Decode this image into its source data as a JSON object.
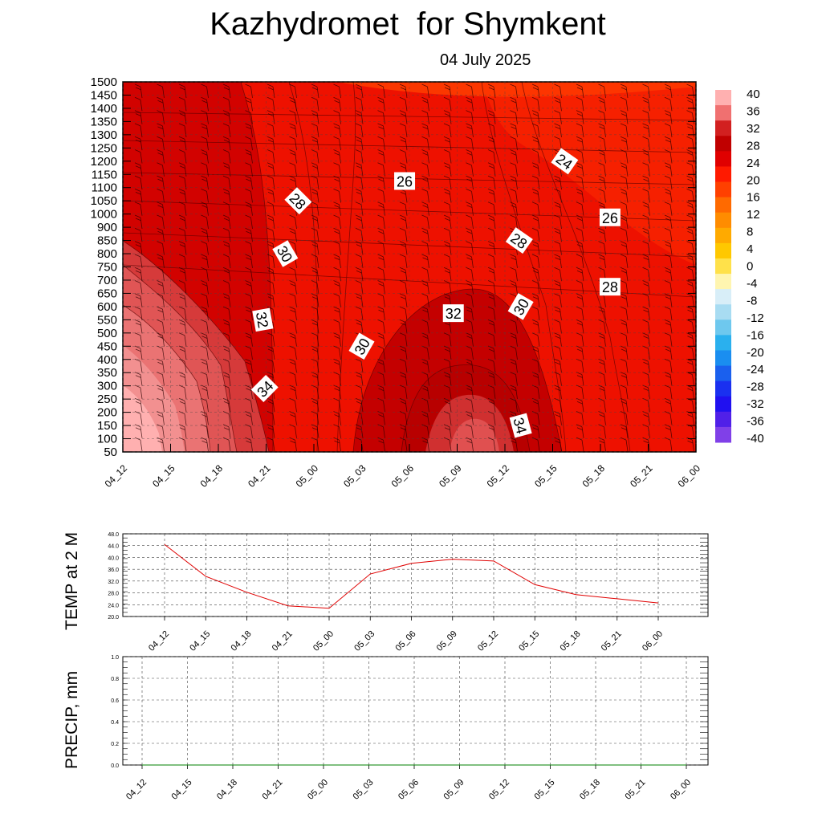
{
  "title": "Kazhydromet  for Shymkent",
  "date_label": "04 July 2025",
  "chart_data": [
    {
      "type": "heatmap",
      "x_ticks": [
        "04_12",
        "04_15",
        "04_18",
        "04_21",
        "05_00",
        "05_03",
        "05_06",
        "05_09",
        "05_12",
        "05_15",
        "05_18",
        "05_21",
        "06_00"
      ],
      "y_ticks": [
        "1500",
        "1450",
        "1400",
        "1350",
        "1300",
        "1250",
        "1200",
        "1150",
        "1100",
        "1050",
        "1000",
        "900",
        "850",
        "800",
        "750",
        "700",
        "650",
        "600",
        "550",
        "500",
        "450",
        "400",
        "350",
        "300",
        "250",
        "200",
        "150",
        "100",
        "50"
      ],
      "colorbar_labels": [
        "40",
        "36",
        "32",
        "28",
        "24",
        "20",
        "16",
        "12",
        "8",
        "4",
        "0",
        "-4",
        "-8",
        "-12",
        "-16",
        "-20",
        "-24",
        "-28",
        "-32",
        "-36",
        "-40"
      ],
      "contour_labels": [
        {
          "text": "24",
          "t": 9.25,
          "level": 1200,
          "angle": 35
        },
        {
          "text": "26",
          "t": 5.9,
          "level": 1125,
          "angle": 0
        },
        {
          "text": "26",
          "t": 10.2,
          "level": 975,
          "angle": 0
        },
        {
          "text": "28",
          "t": 3.67,
          "level": 1050,
          "angle": 45
        },
        {
          "text": "28",
          "t": 8.3,
          "level": 850,
          "angle": 35
        },
        {
          "text": "28",
          "t": 10.2,
          "level": 675,
          "angle": 0
        },
        {
          "text": "30",
          "t": 3.4,
          "level": 800,
          "angle": 60
        },
        {
          "text": "30",
          "t": 8.33,
          "level": 600,
          "angle": -60
        },
        {
          "text": "30",
          "t": 5.0,
          "level": 450,
          "angle": -60
        },
        {
          "text": "32",
          "t": 2.93,
          "level": 550,
          "angle": 80
        },
        {
          "text": "32",
          "t": 6.92,
          "level": 575,
          "angle": 0
        },
        {
          "text": "34",
          "t": 2.97,
          "level": 290,
          "angle": -45
        },
        {
          "text": "34",
          "t": 8.33,
          "level": 150,
          "angle": 75
        }
      ],
      "colors": {
        "base": "#ee1100",
        "warm_core": "#c40000",
        "hot_pink": "#ffb0b0",
        "upper_orange": "#ff5500"
      }
    },
    {
      "type": "line",
      "ylabel": "TEMP at 2 M",
      "categories": [
        "04_12",
        "04_15",
        "04_18",
        "04_21",
        "05_00",
        "05_03",
        "05_06",
        "05_09",
        "05_12",
        "05_15",
        "05_18",
        "05_21",
        "06_00"
      ],
      "values": [
        44.4,
        33.6,
        28.2,
        23.6,
        22.8,
        34.4,
        38.0,
        39.4,
        38.8,
        30.8,
        27.4,
        26.0,
        24.6
      ],
      "ylim": [
        20.0,
        48.0
      ],
      "y_ticks": [
        "48.0",
        "44.0",
        "40.0",
        "36.0",
        "32.0",
        "28.0",
        "24.0",
        "20.0"
      ],
      "line_color": "#e00000"
    },
    {
      "type": "line",
      "ylabel": "PRECIP, mm",
      "categories": [
        "04_12",
        "04_15",
        "04_18",
        "04_21",
        "05_00",
        "05_03",
        "05_06",
        "05_09",
        "05_12",
        "05_15",
        "05_18",
        "05_21",
        "06_00"
      ],
      "values": [
        0,
        0,
        0,
        0,
        0,
        0,
        0,
        0,
        0,
        0,
        0,
        0,
        0
      ],
      "ylim": [
        0.0,
        1.0
      ],
      "y_ticks": [
        "1.0",
        "0.8",
        "0.6",
        "0.4",
        "0.2",
        "0.0"
      ],
      "line_color": "#008000"
    }
  ]
}
